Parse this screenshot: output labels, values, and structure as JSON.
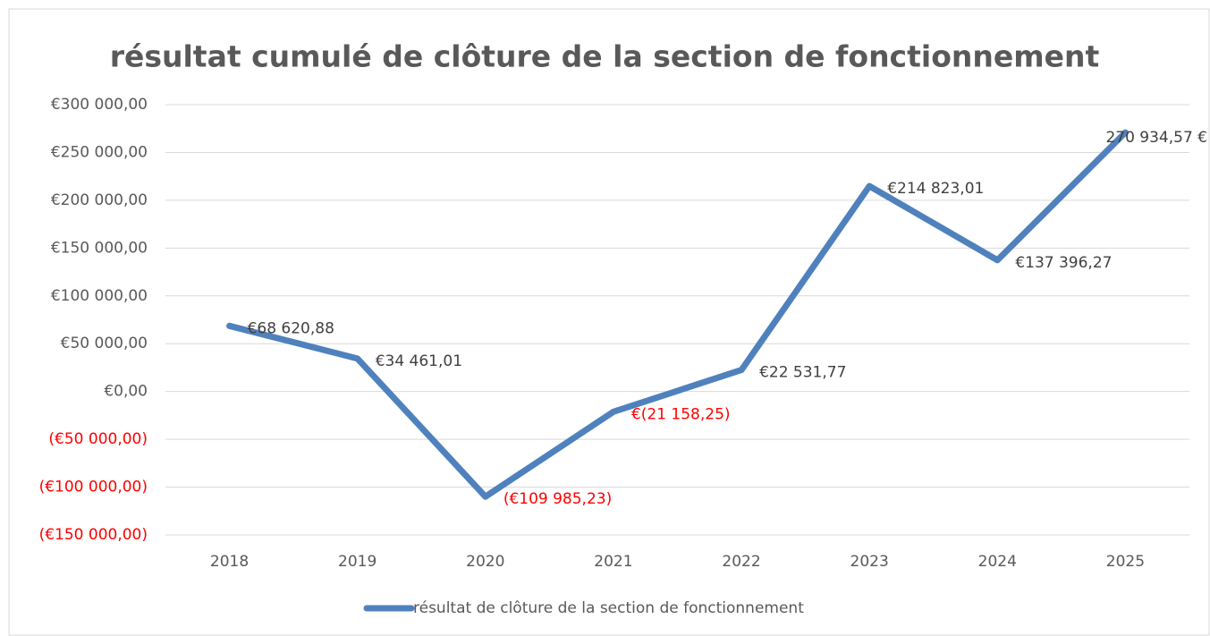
{
  "chart_data": {
    "type": "line",
    "title": "résultat cumulé de clôture de la section de fonctionnement",
    "categories": [
      "2018",
      "2019",
      "2020",
      "2021",
      "2022",
      "2023",
      "2024",
      "2025"
    ],
    "series": [
      {
        "name": "résultat de clôture de la section de fonctionnement",
        "color": "#4f81bd",
        "values": [
          68620.88,
          34461.01,
          -109985.23,
          -21158.25,
          22531.77,
          214823.01,
          137396.27,
          270934.57
        ],
        "value_labels": [
          "€68 620,88",
          "€34 461,01",
          "(€109 985,23)",
          "€(21 158,25)",
          "€22 531,77",
          "€214 823,01",
          "€137 396,27",
          "270 934,57 €"
        ]
      }
    ],
    "ylim": [
      -150000,
      300000
    ],
    "yticks": [
      {
        "value": -150000,
        "label": "(€150 000,00)"
      },
      {
        "value": -100000,
        "label": "(€100 000,00)"
      },
      {
        "value": -50000,
        "label": "(€50 000,00)"
      },
      {
        "value": 0,
        "label": "€0,00"
      },
      {
        "value": 50000,
        "label": "€50 000,00"
      },
      {
        "value": 100000,
        "label": "€100 000,00"
      },
      {
        "value": 150000,
        "label": "€150 000,00"
      },
      {
        "value": 200000,
        "label": "€200 000,00"
      },
      {
        "value": 250000,
        "label": "€250 000,00"
      },
      {
        "value": 300000,
        "label": "€300 000,00"
      }
    ],
    "grid": true,
    "negative_color": "#ff0000",
    "legend": "bottom"
  }
}
